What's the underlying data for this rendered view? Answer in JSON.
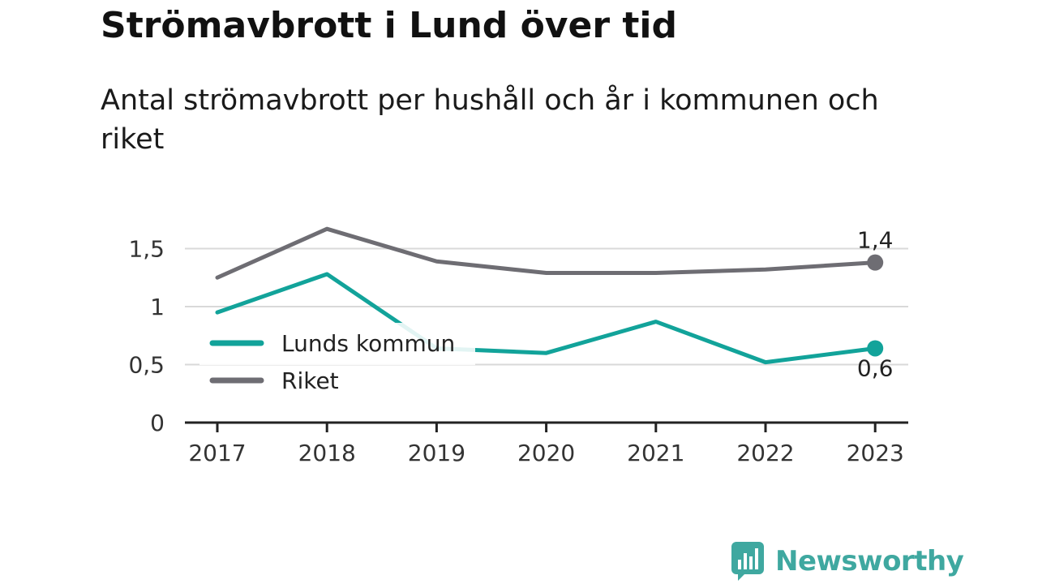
{
  "title": "Strömavbrott i Lund över tid",
  "subtitle": "Antal strömavbrott per hushåll och år i kommunen och riket",
  "brand": {
    "name": "Newsworthy",
    "icon": "newsworthy-logo-icon",
    "color": "#3fa8a0"
  },
  "chart_data": {
    "type": "line",
    "categories": [
      "2017",
      "2018",
      "2019",
      "2020",
      "2021",
      "2022",
      "2023"
    ],
    "y_ticks": [
      {
        "value": 0,
        "label": "0"
      },
      {
        "value": 0.5,
        "label": "0,5"
      },
      {
        "value": 1,
        "label": "1"
      },
      {
        "value": 1.5,
        "label": "1,5"
      }
    ],
    "ylim": [
      0,
      1.75
    ],
    "grid": true,
    "legend_position": "left",
    "series": [
      {
        "name": "Lunds kommun",
        "color": "#12a39a",
        "values": [
          0.95,
          1.28,
          0.64,
          0.6,
          0.87,
          0.52,
          0.64
        ],
        "end_label": "0,6",
        "end_label_position": "below"
      },
      {
        "name": "Riket",
        "color": "#6e6d73",
        "values": [
          1.25,
          1.67,
          1.39,
          1.29,
          1.29,
          1.32,
          1.38
        ],
        "end_label": "1,4",
        "end_label_position": "above"
      }
    ]
  }
}
